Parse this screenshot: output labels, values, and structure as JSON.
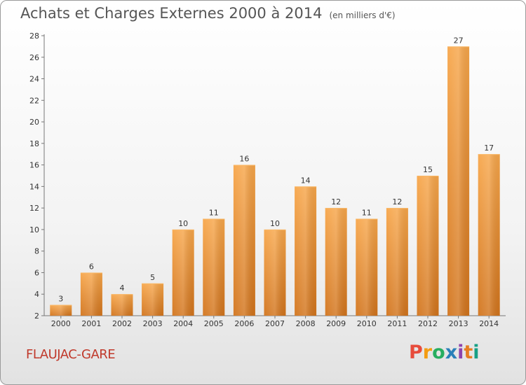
{
  "header": {
    "title": "Achats et Charges Externes 2000 à 2014",
    "unit": "(en milliers d'€)"
  },
  "footer": {
    "place": "FLAUJAC-GARE",
    "logo": "Proxiti",
    "logo_colors": [
      "#e74c3c",
      "#f39c12",
      "#27ae60",
      "#2980b9",
      "#8e44ad",
      "#e67e22",
      "#16a085"
    ]
  },
  "chart_data": {
    "type": "bar",
    "title": "Achats et Charges Externes 2000 à 2014",
    "subtitle": "(en milliers d'€)",
    "xlabel": "",
    "ylabel": "",
    "categories": [
      "2000",
      "2001",
      "2002",
      "2003",
      "2004",
      "2005",
      "2006",
      "2007",
      "2008",
      "2009",
      "2010",
      "2011",
      "2012",
      "2013",
      "2014"
    ],
    "values": [
      3,
      6,
      4,
      5,
      10,
      11,
      16,
      10,
      14,
      12,
      11,
      12,
      15,
      27,
      17
    ],
    "ylim": [
      2,
      28
    ],
    "yticks": [
      2,
      4,
      6,
      8,
      10,
      12,
      14,
      16,
      18,
      20,
      22,
      24,
      26,
      28
    ],
    "grid": false,
    "bar_color": "#f0962f"
  }
}
